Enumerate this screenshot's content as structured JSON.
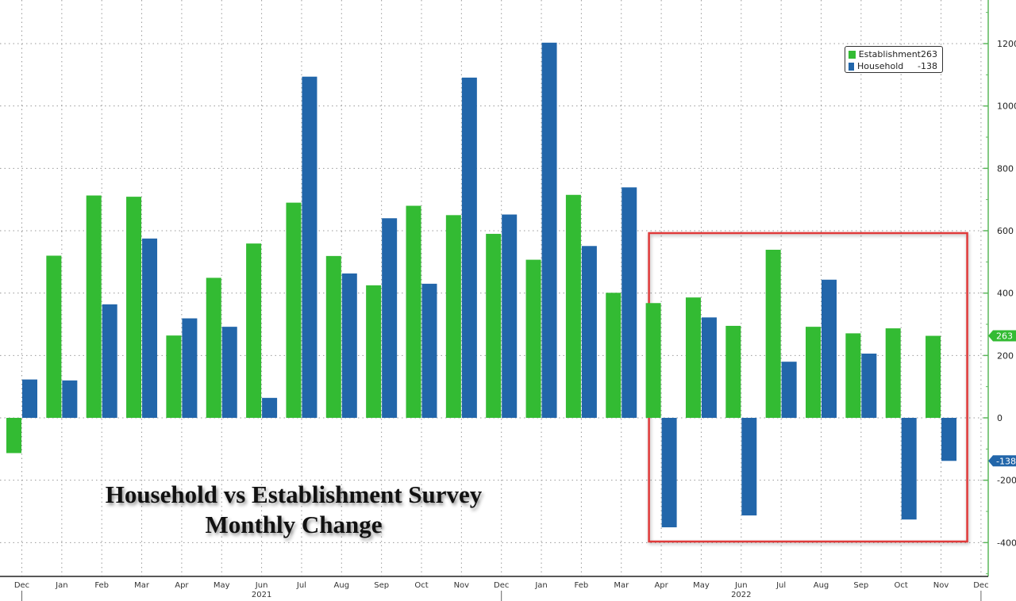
{
  "chart_data": {
    "type": "bar",
    "title": "Household vs Establishment Survey",
    "subtitle": "Monthly Change",
    "xlabel": "",
    "ylabel": "",
    "ylim": [
      -450,
      1300
    ],
    "yticks": [
      1200,
      1000,
      800,
      600,
      400,
      200,
      0,
      -200,
      -400
    ],
    "grid": true,
    "legend_position": "top-right",
    "categories": [
      "Dec",
      "Jan",
      "Feb",
      "Mar",
      "Apr",
      "May",
      "Jun",
      "Jul",
      "Aug",
      "Sep",
      "Oct",
      "Nov",
      "Dec",
      "Jan",
      "Feb",
      "Mar",
      "Apr",
      "May",
      "Jun",
      "Jul",
      "Aug",
      "Sep",
      "Oct",
      "Nov"
    ],
    "x_tick_labels": [
      "Dec",
      "Jan",
      "Feb",
      "Mar",
      "Apr",
      "May",
      "Jun",
      "Jul",
      "Aug",
      "Sep",
      "Oct",
      "Nov",
      "Dec",
      "Jan",
      "Feb",
      "Mar",
      "Apr",
      "May",
      "Jun",
      "Jul",
      "Aug",
      "Sep",
      "Oct",
      "Nov",
      "Dec"
    ],
    "year_labels": [
      {
        "label": "2021",
        "at_tick": 6
      },
      {
        "label": "2022",
        "at_tick": 18
      }
    ],
    "series": [
      {
        "name": "Establishment",
        "color": "#33bb33",
        "last_value": "263",
        "values": [
          -113,
          520,
          713,
          709,
          264,
          449,
          559,
          690,
          519,
          425,
          680,
          650,
          590,
          507,
          715,
          401,
          368,
          386,
          295,
          539,
          292,
          271,
          287,
          263
        ]
      },
      {
        "name": "Household",
        "color": "#2266aa",
        "last_value": "-138",
        "values": [
          123,
          120,
          364,
          575,
          319,
          292,
          64,
          1094,
          463,
          640,
          430,
          1091,
          652,
          1203,
          551,
          739,
          -351,
          322,
          -313,
          180,
          443,
          206,
          -326,
          -138
        ]
      }
    ],
    "highlight_box": {
      "from_category": 16,
      "to_category": 23,
      "color": "#e03a3a"
    },
    "axis_tags": [
      {
        "value": 263,
        "label": "263",
        "color": "#33bb33"
      },
      {
        "value": -138,
        "label": "-138",
        "color": "#2266aa"
      }
    ]
  }
}
